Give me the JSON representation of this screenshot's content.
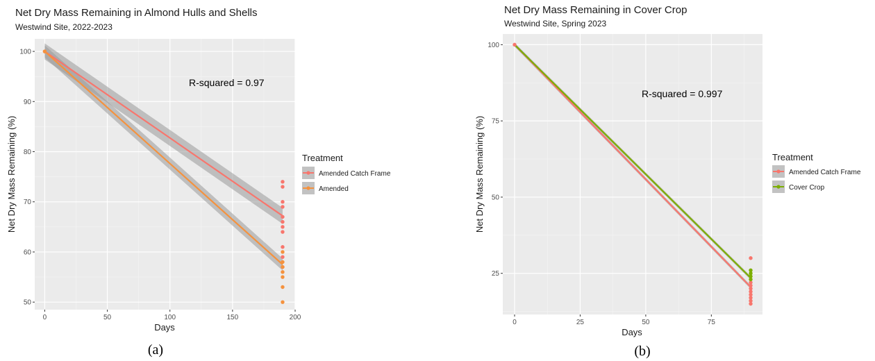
{
  "chart_data": [
    {
      "type": "scatter",
      "title": "Net Dry Mass Remaining in Almond Hulls and Shells",
      "subtitle": "Westwind Site, 2022-2023",
      "xlabel": "Days",
      "ylabel": "Net Dry Mass Remaining (%)",
      "xlim": [
        -8,
        200
      ],
      "ylim": [
        48.5,
        102.5
      ],
      "xticks": [
        0,
        50,
        100,
        150,
        200
      ],
      "yticks": [
        50,
        60,
        70,
        80,
        90,
        100
      ],
      "grid": true,
      "annotation": "R-squared = 0.97",
      "caption": "(a)",
      "legend_title": "Treatment",
      "legend_position": "right",
      "series": [
        {
          "name": "Amended Catch Frame",
          "color": "#F8766D",
          "fit": {
            "x0": 0,
            "y0": 100,
            "x1": 190,
            "y1": 67.2
          },
          "band": 1.6,
          "points": [
            [
              0,
              100
            ],
            [
              190,
              74
            ],
            [
              190,
              73
            ],
            [
              190,
              70
            ],
            [
              190,
              69
            ],
            [
              190,
              67
            ],
            [
              190,
              66
            ],
            [
              190,
              65
            ],
            [
              190,
              64
            ],
            [
              190,
              61
            ],
            [
              190,
              59
            ],
            [
              190,
              57
            ]
          ]
        },
        {
          "name": "Amended",
          "color": "#F5923E",
          "fit": {
            "x0": 0,
            "y0": 100,
            "x1": 190,
            "y1": 57.5
          },
          "band": 1.2,
          "points": [
            [
              0,
              100
            ],
            [
              190,
              60
            ],
            [
              190,
              58
            ],
            [
              190,
              57
            ],
            [
              190,
              56
            ],
            [
              190,
              55
            ],
            [
              190,
              53
            ],
            [
              190,
              50
            ]
          ]
        }
      ]
    },
    {
      "type": "scatter",
      "title": "Net Dry Mass Remaining in Cover Crop",
      "subtitle": "Westwind Site, Spring 2023",
      "xlabel": "Days",
      "ylabel": "Net Dry Mass Remaining (%)",
      "xlim": [
        -4.5,
        94.5
      ],
      "ylim": [
        11.5,
        103.5
      ],
      "xticks": [
        0,
        25,
        50,
        75
      ],
      "yticks": [
        25,
        50,
        75,
        100
      ],
      "grid": true,
      "annotation": "R-squared = 0.997",
      "caption": "(b)",
      "legend_title": "Treatment",
      "legend_position": "right",
      "series": [
        {
          "name": "Amended Catch Frame",
          "color": "#F8766D",
          "fit": {
            "x0": 0,
            "y0": 100,
            "x1": 90,
            "y1": 20.5
          },
          "band": 0.6,
          "points": [
            [
              0,
              100
            ],
            [
              90,
              30
            ],
            [
              90,
              22
            ],
            [
              90,
              21
            ],
            [
              90,
              20
            ],
            [
              90,
              19
            ],
            [
              90,
              18
            ],
            [
              90,
              17
            ],
            [
              90,
              16
            ],
            [
              90,
              15
            ]
          ]
        },
        {
          "name": "Cover Crop",
          "color": "#7CAE00",
          "fit": {
            "x0": 0,
            "y0": 100,
            "x1": 90,
            "y1": 23.5
          },
          "band": 0.6,
          "points": [
            [
              90,
              26
            ],
            [
              90,
              25
            ],
            [
              90,
              24
            ],
            [
              90,
              23
            ]
          ]
        }
      ]
    }
  ]
}
